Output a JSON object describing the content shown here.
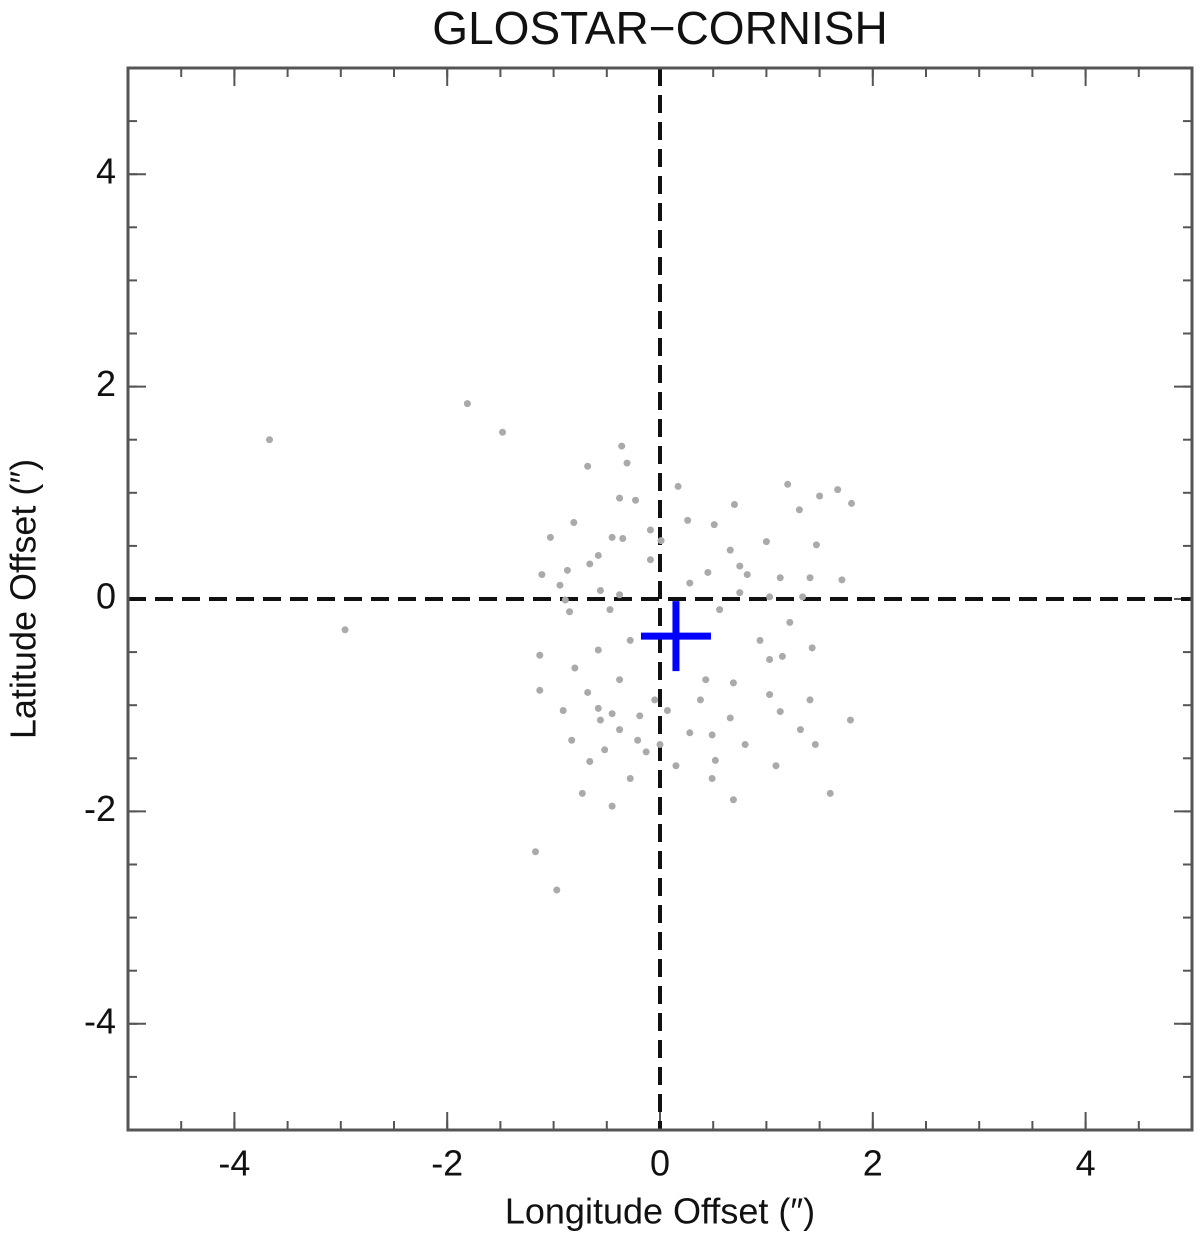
{
  "chart_data": {
    "type": "scatter",
    "title": "GLOSTAR−CORNISH",
    "xlabel": "Longitude Offset (″)",
    "ylabel": "Latitude Offset (″)",
    "xlim": [
      -5,
      5
    ],
    "ylim": [
      -5,
      5
    ],
    "xticks": [
      -4,
      -2,
      0,
      2,
      4
    ],
    "yticks": [
      -4,
      -2,
      0,
      2,
      4
    ],
    "minor_step": 0.5,
    "vlines": [
      0
    ],
    "hlines": [
      0
    ],
    "series": [
      {
        "color": "#aaaaaa",
        "marker": "dot",
        "x": [
          -3.67,
          -1.81,
          -1.48,
          -2.96,
          -1.17,
          -0.97,
          -0.36,
          -0.68,
          -0.31,
          0.17,
          1.2,
          1.5,
          1.67,
          1.8,
          0.7,
          1.31,
          -0.38,
          -0.23,
          -0.81,
          0.26,
          0.51,
          -0.09,
          -1.03,
          -0.45,
          -0.35,
          0.01,
          1.0,
          1.47,
          0.66,
          -0.58,
          -0.66,
          0.75,
          0.45,
          -1.11,
          -0.87,
          0.82,
          1.13,
          1.41,
          1.71,
          0.28,
          -0.94,
          -0.56,
          -0.38,
          0.75,
          1.03,
          1.34,
          -0.85,
          -0.47,
          0.56,
          1.22,
          -1.13,
          -0.58,
          -0.28,
          0.94,
          1.15,
          1.43,
          -0.8,
          -0.38,
          0.43,
          0.69,
          1.03,
          -1.13,
          -0.68,
          -0.05,
          0.38,
          1.41,
          -0.91,
          -0.58,
          -0.45,
          -0.19,
          0.07,
          0.66,
          1.13,
          1.79,
          -0.38,
          0.28,
          0.49,
          1.32,
          -0.83,
          -0.21,
          0.0,
          -0.52,
          0.8,
          1.46,
          -0.66,
          -0.13,
          0.15,
          0.52,
          1.09,
          -0.28,
          0.49,
          -0.73,
          1.6,
          -0.45,
          0.69,
          -0.89,
          -0.09,
          1.03,
          -0.56
        ],
        "y": [
          1.5,
          1.84,
          1.57,
          -0.29,
          -2.38,
          -2.74,
          1.44,
          1.25,
          1.28,
          1.06,
          1.08,
          0.97,
          1.03,
          0.9,
          0.89,
          0.84,
          0.95,
          0.93,
          0.72,
          0.74,
          0.7,
          0.65,
          0.58,
          0.58,
          0.57,
          0.55,
          0.54,
          0.51,
          0.46,
          0.41,
          0.33,
          0.31,
          0.25,
          0.23,
          0.27,
          0.23,
          0.2,
          0.2,
          0.18,
          0.15,
          0.13,
          0.08,
          0.04,
          0.06,
          0.02,
          0.02,
          -0.12,
          -0.1,
          -0.1,
          -0.22,
          -0.53,
          -0.48,
          -0.39,
          -0.39,
          -0.54,
          -0.46,
          -0.65,
          -0.76,
          -0.76,
          -0.79,
          -0.9,
          -0.86,
          -0.88,
          -0.95,
          -0.95,
          -0.95,
          -1.05,
          -1.03,
          -1.08,
          -1.1,
          -1.05,
          -1.12,
          -1.06,
          -1.14,
          -1.23,
          -1.26,
          -1.28,
          -1.23,
          -1.33,
          -1.33,
          -1.37,
          -1.42,
          -1.37,
          -1.37,
          -1.53,
          -1.44,
          -1.57,
          -1.52,
          -1.57,
          -1.69,
          -1.69,
          -1.83,
          -1.83,
          -1.95,
          -1.89,
          -0.01,
          0.37,
          -0.57,
          -1.14
        ]
      },
      {
        "color": "#0000ff",
        "marker": "plus",
        "x": [
          0.15
        ],
        "y": [
          -0.35
        ]
      }
    ]
  }
}
